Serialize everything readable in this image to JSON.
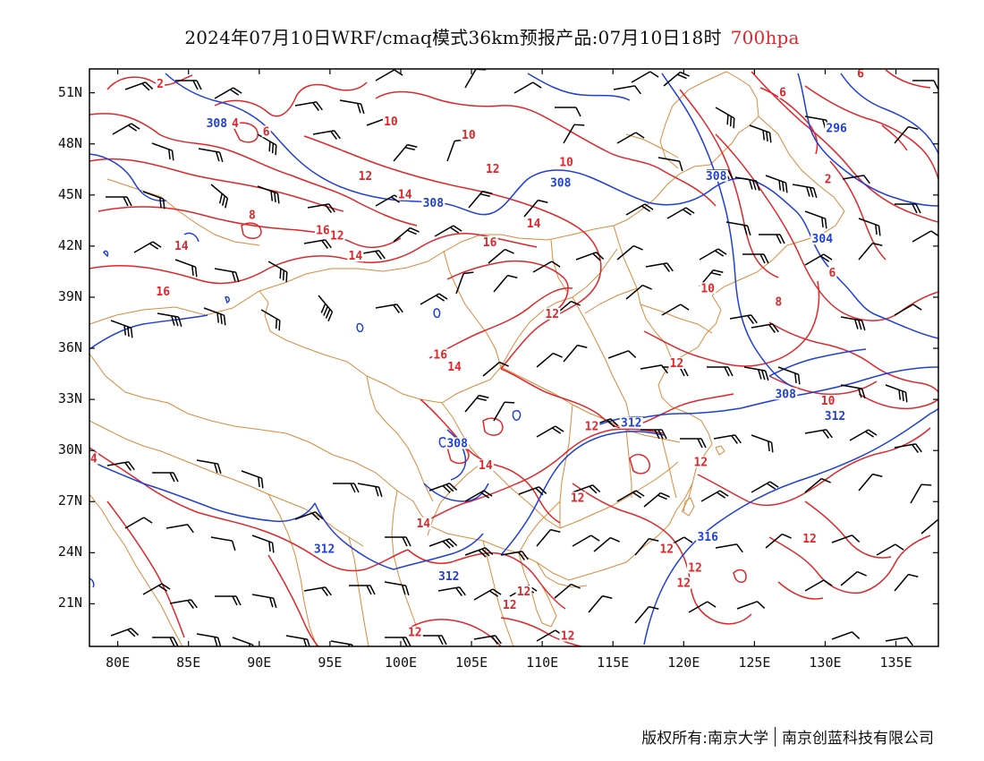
{
  "title": {
    "main": "2024年07月10日WRF/cmaq模式36km预报产品:07月10日18时",
    "level": "700hpa"
  },
  "axes": {
    "lat_labels": [
      "51N",
      "48N",
      "45N",
      "42N",
      "39N",
      "36N",
      "33N",
      "30N",
      "27N",
      "24N",
      "21N"
    ],
    "lat_values": [
      51,
      48,
      45,
      42,
      39,
      36,
      33,
      30,
      27,
      24,
      21
    ],
    "lon_labels": [
      "80E",
      "85E",
      "90E",
      "95E",
      "100E",
      "105E",
      "110E",
      "115E",
      "120E",
      "125E",
      "130E",
      "135E"
    ],
    "lon_values": [
      80,
      85,
      90,
      95,
      100,
      105,
      110,
      115,
      120,
      125,
      130,
      135
    ],
    "lon_range": [
      78,
      138
    ],
    "lat_range": [
      18.5,
      52.4
    ]
  },
  "map_extent": {
    "lon_min": 78,
    "lon_max": 138,
    "lat_min": 18.5,
    "lat_max": 52.4
  },
  "colors": {
    "temperature_contour": "#e0262a",
    "height_contour": "#1f3fd6",
    "border": "#d98a3a",
    "wind_barb": "#000000",
    "frame": "#000000"
  },
  "temperature_labels": [
    {
      "text": "2",
      "lon": 83.0,
      "lat": 51.4
    },
    {
      "text": "4",
      "lon": 88.3,
      "lat": 49.1
    },
    {
      "text": "6",
      "lon": 90.5,
      "lat": 48.6
    },
    {
      "text": "10",
      "lon": 99.3,
      "lat": 49.2
    },
    {
      "text": "10",
      "lon": 104.8,
      "lat": 48.4
    },
    {
      "text": "10",
      "lon": 111.7,
      "lat": 46.8
    },
    {
      "text": "12",
      "lon": 97.5,
      "lat": 46.0
    },
    {
      "text": "12",
      "lon": 106.5,
      "lat": 46.4
    },
    {
      "text": "14",
      "lon": 100.3,
      "lat": 44.9
    },
    {
      "text": "14",
      "lon": 109.4,
      "lat": 43.2
    },
    {
      "text": "16",
      "lon": 94.5,
      "lat": 42.8
    },
    {
      "text": "12",
      "lon": 95.5,
      "lat": 42.5
    },
    {
      "text": "8",
      "lon": 89.5,
      "lat": 43.7
    },
    {
      "text": "14",
      "lon": 84.5,
      "lat": 41.9
    },
    {
      "text": "14",
      "lon": 96.8,
      "lat": 41.3
    },
    {
      "text": "16",
      "lon": 106.3,
      "lat": 42.1
    },
    {
      "text": "16",
      "lon": 83.2,
      "lat": 39.2
    },
    {
      "text": "12",
      "lon": 110.7,
      "lat": 37.9
    },
    {
      "text": "10",
      "lon": 121.7,
      "lat": 39.4
    },
    {
      "text": "8",
      "lon": 126.7,
      "lat": 38.6
    },
    {
      "text": "16",
      "lon": 102.8,
      "lat": 35.5
    },
    {
      "text": "14",
      "lon": 103.8,
      "lat": 34.8
    },
    {
      "text": "12",
      "lon": 119.5,
      "lat": 35.0
    },
    {
      "text": "10",
      "lon": 130.2,
      "lat": 32.8
    },
    {
      "text": "12",
      "lon": 113.5,
      "lat": 31.3
    },
    {
      "text": "4",
      "lon": 78.3,
      "lat": 29.4
    },
    {
      "text": "14",
      "lon": 106.0,
      "lat": 29.0
    },
    {
      "text": "12",
      "lon": 121.2,
      "lat": 29.2
    },
    {
      "text": "12",
      "lon": 112.5,
      "lat": 27.1
    },
    {
      "text": "14",
      "lon": 101.6,
      "lat": 25.6
    },
    {
      "text": "12",
      "lon": 118.8,
      "lat": 24.1
    },
    {
      "text": "12",
      "lon": 120.8,
      "lat": 23.0
    },
    {
      "text": "12",
      "lon": 120.0,
      "lat": 22.1
    },
    {
      "text": "12",
      "lon": 108.7,
      "lat": 21.6
    },
    {
      "text": "12",
      "lon": 107.7,
      "lat": 20.8
    },
    {
      "text": "12",
      "lon": 128.9,
      "lat": 24.7
    },
    {
      "text": "12",
      "lon": 101.0,
      "lat": 19.2
    },
    {
      "text": "12",
      "lon": 111.8,
      "lat": 19.0
    },
    {
      "text": "6",
      "lon": 127.0,
      "lat": 50.9
    },
    {
      "text": "2",
      "lon": 130.2,
      "lat": 45.8
    },
    {
      "text": "6",
      "lon": 130.5,
      "lat": 40.3
    },
    {
      "text": "6",
      "lon": 132.5,
      "lat": 52.0
    }
  ],
  "height_labels": [
    {
      "text": "308",
      "lon": 87.0,
      "lat": 49.1
    },
    {
      "text": "308",
      "lon": 102.3,
      "lat": 44.4
    },
    {
      "text": "308",
      "lon": 111.3,
      "lat": 45.6
    },
    {
      "text": "308",
      "lon": 122.3,
      "lat": 46.0
    },
    {
      "text": "296",
      "lon": 130.8,
      "lat": 48.8
    },
    {
      "text": "304",
      "lon": 129.8,
      "lat": 42.3
    },
    {
      "text": "308",
      "lon": 127.2,
      "lat": 33.2
    },
    {
      "text": "312",
      "lon": 116.3,
      "lat": 31.5
    },
    {
      "text": "312",
      "lon": 130.7,
      "lat": 31.9
    },
    {
      "text": "308",
      "lon": 104.0,
      "lat": 30.3
    },
    {
      "text": "316",
      "lon": 121.7,
      "lat": 24.8
    },
    {
      "text": "312",
      "lon": 94.6,
      "lat": 24.1
    },
    {
      "text": "312",
      "lon": 103.4,
      "lat": 22.5
    }
  ],
  "footer": {
    "copyright": "版权所有:南京大学",
    "company": "南京创蓝科技有限公司"
  }
}
